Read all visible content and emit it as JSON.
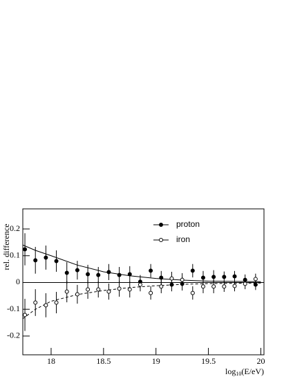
{
  "chart_data": {
    "type": "errorbar",
    "y_label": "rel. difference",
    "x_label": {
      "base": "log",
      "sub": "10",
      "rest": "(E/eV)"
    },
    "xlim": [
      17.73,
      20.03
    ],
    "ylim": [
      -0.27,
      0.275
    ],
    "xticks": [
      18,
      18.5,
      19,
      19.5,
      20
    ],
    "yticks": [
      0.2,
      0.1,
      0,
      -0.1,
      -0.2
    ],
    "hline": 0,
    "legend": "top-center",
    "x": [
      17.75,
      17.85,
      17.95,
      18.05,
      18.15,
      18.25,
      18.35,
      18.45,
      18.55,
      18.65,
      18.75,
      18.85,
      18.95,
      19.05,
      19.15,
      19.25,
      19.35,
      19.45,
      19.55,
      19.65,
      19.75,
      19.85,
      19.95
    ],
    "fit_x": [
      17.73,
      17.85,
      18,
      18.25,
      18.5,
      18.75,
      19,
      19.25,
      19.5,
      19.75,
      20
    ],
    "series": [
      {
        "name": "proton",
        "color": "#000",
        "marker": "filled",
        "line": "solid",
        "values": [
          0.124,
          0.083,
          0.093,
          0.08,
          0.036,
          0.046,
          0.031,
          0.028,
          0.039,
          0.028,
          0.031,
          0.003,
          0.044,
          0.018,
          -0.008,
          -0.005,
          0.044,
          0.018,
          0.021,
          0.021,
          0.023,
          0.01,
          -0.008
        ],
        "errors": [
          0.06,
          0.05,
          0.045,
          0.04,
          0.04,
          0.035,
          0.035,
          0.03,
          0.03,
          0.03,
          0.03,
          0.025,
          0.025,
          0.025,
          0.025,
          0.025,
          0.025,
          0.025,
          0.025,
          0.02,
          0.02,
          0.02,
          0.02
        ],
        "fit": [
          0.14,
          0.12,
          0.1,
          0.065,
          0.04,
          0.025,
          0.015,
          0.009,
          0.005,
          0.004,
          0.003
        ]
      },
      {
        "name": "iron",
        "color": "#000",
        "marker": "open",
        "line": "dashed",
        "values": [
          -0.121,
          -0.075,
          -0.085,
          -0.075,
          -0.034,
          -0.044,
          -0.026,
          -0.026,
          -0.034,
          -0.023,
          -0.026,
          -0.008,
          -0.039,
          -0.015,
          0.015,
          0.01,
          -0.039,
          -0.015,
          -0.015,
          -0.015,
          -0.013,
          -0.005,
          0.013
        ],
        "errors": [
          0.06,
          0.05,
          0.045,
          0.04,
          0.04,
          0.035,
          0.035,
          0.03,
          0.03,
          0.03,
          0.03,
          0.025,
          0.025,
          0.025,
          0.025,
          0.025,
          0.025,
          0.025,
          0.025,
          0.02,
          0.02,
          0.02,
          0.02
        ],
        "fit": [
          -0.135,
          -0.1,
          -0.07,
          -0.045,
          -0.03,
          -0.019,
          -0.012,
          -0.007,
          -0.004,
          -0.003,
          -0.002
        ]
      }
    ]
  }
}
